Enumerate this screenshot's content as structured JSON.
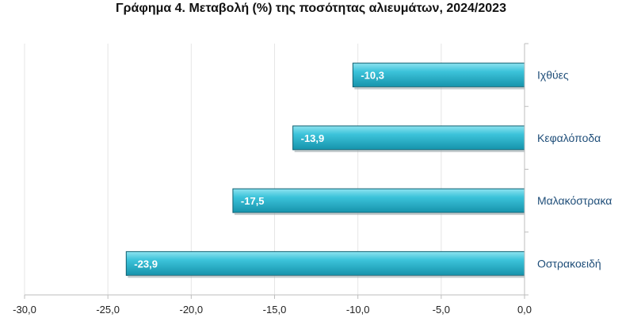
{
  "chart_data": {
    "type": "bar",
    "orientation": "horizontal",
    "title": "Γράφημα 4. Μεταβολή (%) της ποσότητας αλιευμάτων, 2024/2023",
    "xlabel": "",
    "ylabel": "",
    "categories": [
      "Ιχθύες",
      "Κεφαλόποδα",
      "Μαλακόστρακα",
      "Οστρακοειδή"
    ],
    "values": [
      -10.3,
      -13.9,
      -17.5,
      -23.9
    ],
    "value_labels": [
      "-10,3",
      "-13,9",
      "-17,5",
      "-23,9"
    ],
    "xlim": [
      -30,
      0
    ],
    "x_ticks": [
      -30,
      -25,
      -20,
      -15,
      -10,
      -5,
      0
    ],
    "x_tick_labels": [
      "-30,0",
      "-25,0",
      "-20,0",
      "-15,0",
      "-10,0",
      "-5,0",
      "0,0"
    ],
    "grid": true,
    "legend": "none",
    "bar_color": "#2fb8cf",
    "bar_edge_color": "#0e5f70"
  }
}
